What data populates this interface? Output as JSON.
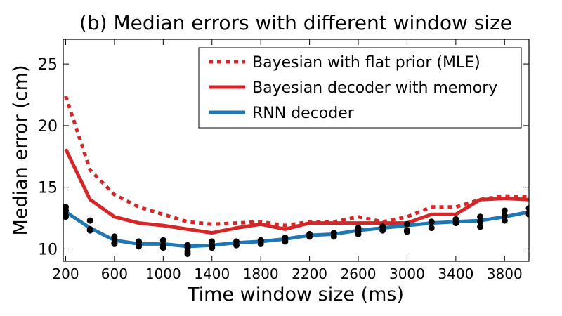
{
  "chart_data": {
    "type": "line",
    "title": "(b) Median errors with different window size",
    "xlabel": "Time window size (ms)",
    "ylabel": "Median error (cm)",
    "xlim": [
      180,
      4000
    ],
    "ylim": [
      9,
      27
    ],
    "xticks": [
      200,
      600,
      1000,
      1400,
      1800,
      2200,
      2600,
      3000,
      3400,
      3800
    ],
    "yticks": [
      10,
      15,
      20,
      25
    ],
    "grid": false,
    "legend_position": "top-right",
    "x": [
      200,
      400,
      600,
      800,
      1000,
      1200,
      1400,
      1600,
      1800,
      2000,
      2200,
      2400,
      2600,
      2800,
      3000,
      3200,
      3400,
      3600,
      3800,
      4000
    ],
    "series": [
      {
        "name": "Bayesian with flat prior (MLE)",
        "style": "dotted",
        "color": "#d62728",
        "values": [
          22.4,
          16.4,
          14.4,
          13.4,
          12.8,
          12.2,
          12.0,
          12.1,
          12.2,
          11.9,
          12.2,
          12.2,
          12.6,
          12.2,
          12.6,
          13.4,
          13.4,
          14.0,
          14.3,
          14.2
        ]
      },
      {
        "name": "Bayesian decoder with memory",
        "style": "solid",
        "color": "#d62728",
        "values": [
          18.1,
          14.0,
          12.6,
          12.1,
          11.9,
          11.6,
          11.3,
          11.7,
          12.0,
          11.6,
          12.1,
          12.1,
          12.1,
          12.1,
          12.1,
          12.8,
          12.8,
          14.0,
          14.1,
          14.0
        ]
      },
      {
        "name": "RNN decoder",
        "style": "solid",
        "color": "#1f77b4",
        "values": [
          13.0,
          11.7,
          10.7,
          10.4,
          10.4,
          10.2,
          10.3,
          10.5,
          10.6,
          10.8,
          11.1,
          11.2,
          11.5,
          11.7,
          11.9,
          12.1,
          12.2,
          12.3,
          12.6,
          13.0
        ]
      }
    ],
    "scatter": {
      "color": "#000000",
      "points": [
        [
          200,
          13.4
        ],
        [
          200,
          13.1
        ],
        [
          200,
          12.7
        ],
        [
          200,
          12.6
        ],
        [
          400,
          12.3
        ],
        [
          400,
          11.6
        ],
        [
          400,
          11.5
        ],
        [
          600,
          11.0
        ],
        [
          600,
          10.8
        ],
        [
          600,
          10.5
        ],
        [
          600,
          10.4
        ],
        [
          800,
          10.6
        ],
        [
          800,
          10.3
        ],
        [
          800,
          10.2
        ],
        [
          1000,
          10.7
        ],
        [
          1000,
          10.3
        ],
        [
          1000,
          10.1
        ],
        [
          1200,
          10.3
        ],
        [
          1200,
          10.1
        ],
        [
          1200,
          9.8
        ],
        [
          1200,
          9.6
        ],
        [
          1400,
          10.6
        ],
        [
          1400,
          10.3
        ],
        [
          1400,
          10.1
        ],
        [
          1600,
          10.6
        ],
        [
          1600,
          10.3
        ],
        [
          1800,
          10.7
        ],
        [
          1800,
          10.4
        ],
        [
          2000,
          10.9
        ],
        [
          2000,
          10.6
        ],
        [
          2200,
          11.2
        ],
        [
          2200,
          11.0
        ],
        [
          2400,
          11.3
        ],
        [
          2400,
          11.0
        ],
        [
          2600,
          11.7
        ],
        [
          2600,
          11.4
        ],
        [
          2600,
          11.2
        ],
        [
          2800,
          11.8
        ],
        [
          2800,
          11.5
        ],
        [
          3000,
          12.0
        ],
        [
          3000,
          11.5
        ],
        [
          3000,
          11.4
        ],
        [
          3200,
          12.2
        ],
        [
          3200,
          11.7
        ],
        [
          3400,
          12.4
        ],
        [
          3400,
          12.1
        ],
        [
          3600,
          12.6
        ],
        [
          3600,
          12.2
        ],
        [
          3600,
          11.8
        ],
        [
          3800,
          13.1
        ],
        [
          3800,
          12.7
        ],
        [
          3800,
          12.3
        ],
        [
          4000,
          13.3
        ],
        [
          4000,
          12.9
        ],
        [
          4000,
          12.8
        ]
      ]
    }
  }
}
